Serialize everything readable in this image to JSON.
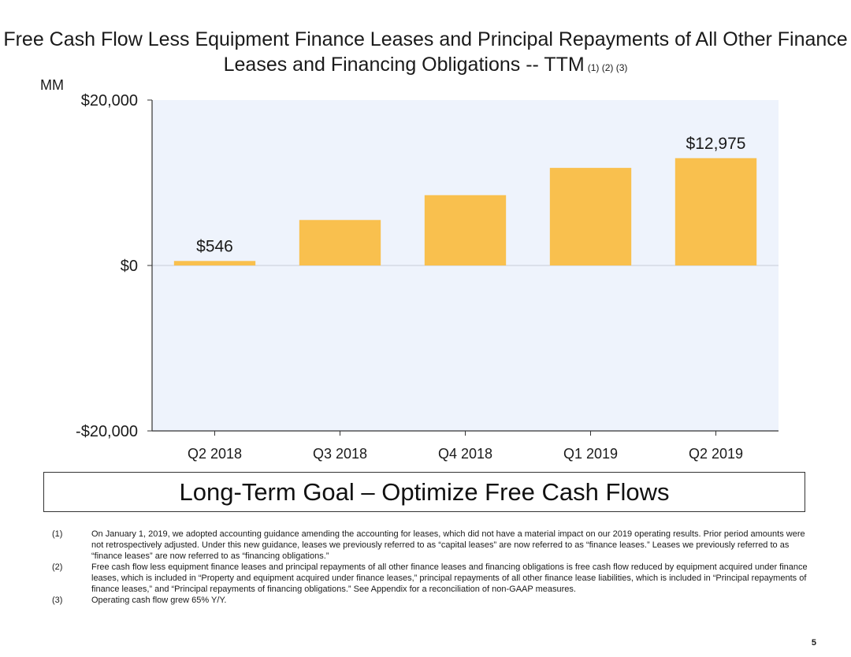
{
  "title": {
    "text": "Free Cash Flow Less Equipment Finance Leases and Principal Repayments of All Other Finance Leases and Financing Obligations -- TTM",
    "notes": "(1) (2) (3)"
  },
  "chart_data": {
    "type": "bar",
    "unit_label": "MM",
    "categories": [
      "Q2 2018",
      "Q3 2018",
      "Q4 2018",
      "Q1 2019",
      "Q2 2019"
    ],
    "values": [
      546,
      5500,
      8500,
      11800,
      12975
    ],
    "data_labels": [
      "$546",
      "",
      "",
      "",
      "$12,975"
    ],
    "ylim": [
      -20000,
      20000
    ],
    "yticks": [
      {
        "value": 20000,
        "label": "$20,000"
      },
      {
        "value": 0,
        "label": "$0"
      },
      {
        "value": -20000,
        "label": "-$20,000"
      }
    ],
    "bar_color": "#F9C04E",
    "plot_background": "#EEF3FC",
    "grid": false
  },
  "goal": "Long-Term Goal – Optimize Free Cash Flows",
  "footnotes": [
    {
      "num": "(1)",
      "text": "On January 1, 2019, we adopted accounting guidance amending the accounting for leases, which did not have a material impact on our 2019 operating results. Prior period amounts were not retrospectively adjusted. Under this new guidance, leases we previously referred to as “capital leases” are now referred to as “finance leases.” Leases we previously referred to as “finance leases” are now referred to as “financing obligations.”"
    },
    {
      "num": "(2)",
      "text": "Free cash flow less equipment finance leases and principal repayments of all other finance leases and financing obligations is free cash flow reduced by equipment acquired under finance leases, which is included in “Property and equipment acquired under finance leases,” principal repayments of all other finance lease liabilities, which is included in “Principal repayments of finance leases,” and “Principal repayments of financing obligations.” See Appendix for a reconciliation of non-GAAP measures."
    },
    {
      "num": "(3)",
      "text": "Operating cash flow grew 65% Y/Y."
    }
  ],
  "page_number": "5"
}
